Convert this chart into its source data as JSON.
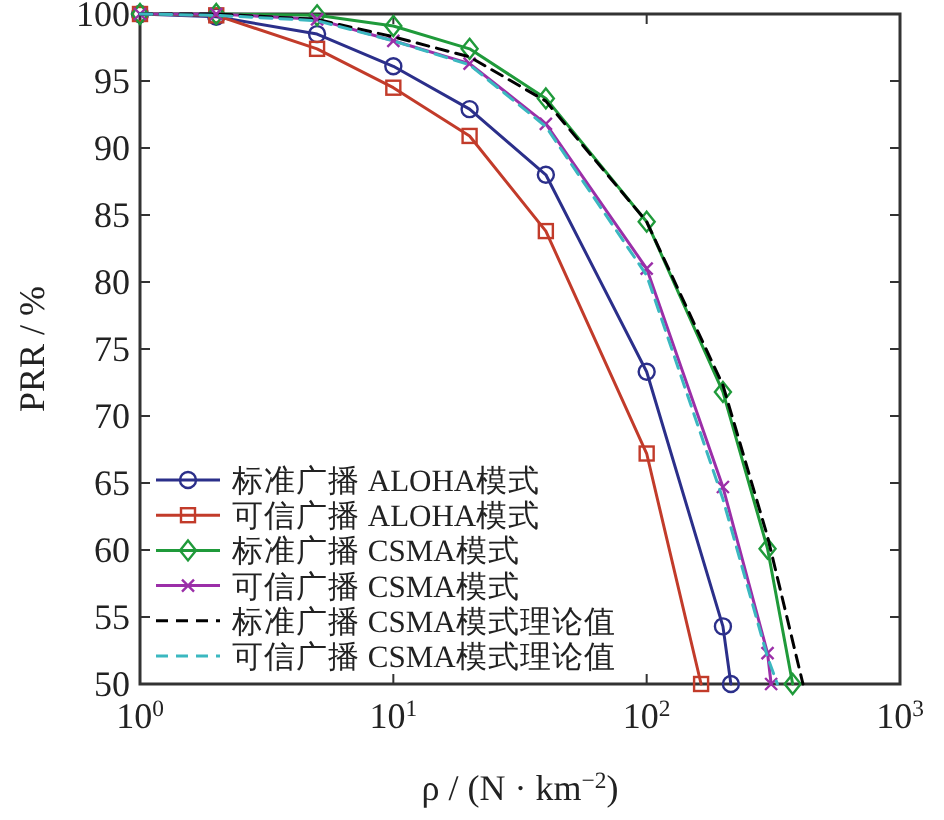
{
  "chart_data": {
    "type": "line",
    "xlabel": "ρ / (N · km$^{−2}$)",
    "ylabel": "PRR / %",
    "log": "x",
    "xlim": [
      1,
      1000
    ],
    "xticks": [
      {
        "value": 1,
        "label": "10$^{0}$"
      },
      {
        "value": 10,
        "label": "10$^{1}$"
      },
      {
        "value": 100,
        "label": "10$^{2}$"
      },
      {
        "value": 1000,
        "label": "10$^{3}$"
      }
    ],
    "ylim": [
      50,
      100
    ],
    "yticks": [
      50,
      55,
      60,
      65,
      70,
      75,
      80,
      85,
      90,
      95,
      100
    ],
    "grid": false,
    "legend": "bottom left",
    "series": [
      {
        "name": "标准广播 ALOHA模式",
        "color": "#2b2f8a",
        "marker": "circle",
        "line_style": "solid",
        "x": [
          1,
          2,
          5,
          10,
          20,
          40,
          100,
          200,
          215
        ],
        "values": [
          100,
          99.8,
          98.5,
          96.1,
          92.9,
          88.0,
          73.3,
          54.3,
          50
        ]
      },
      {
        "name": "可信广播 ALOHA模式",
        "color": "#c23b2a",
        "marker": "square",
        "line_style": "solid",
        "x": [
          1,
          2,
          5,
          10,
          20,
          40,
          100,
          164
        ],
        "values": [
          100,
          99.9,
          97.4,
          94.5,
          90.9,
          83.8,
          67.2,
          50
        ]
      },
      {
        "name": "标准广播 CSMA模式",
        "color": "#1f9a3a",
        "marker": "diamond",
        "line_style": "solid",
        "x": [
          1,
          2,
          5,
          10,
          20,
          40,
          100,
          200,
          300,
          377
        ],
        "values": [
          100,
          100,
          99.9,
          99.1,
          97.4,
          93.7,
          84.5,
          71.8,
          60.1,
          50
        ]
      },
      {
        "name": "可信广播 CSMA模式",
        "color": "#9b2fa8",
        "marker": "cross",
        "line_style": "solid",
        "x": [
          1,
          2,
          5,
          10,
          20,
          40,
          100,
          200,
          300,
          310
        ],
        "values": [
          100,
          100,
          99.6,
          98.0,
          96.3,
          91.8,
          81.0,
          64.7,
          52.3,
          50
        ]
      },
      {
        "name": "标准广播 CSMA模式理论值",
        "color": "#000000",
        "marker": "none",
        "line_style": "dashed",
        "x": [
          1,
          2,
          5,
          10,
          20,
          40,
          100,
          200,
          300,
          414
        ],
        "values": [
          100,
          100,
          99.6,
          98.3,
          96.8,
          93.5,
          84.5,
          72.3,
          61.0,
          50
        ]
      },
      {
        "name": "可信广播 CSMA模式理论值",
        "color": "#3bb8c0",
        "marker": "none",
        "line_style": "dashed",
        "x": [
          1,
          2,
          5,
          10,
          20,
          40,
          100,
          200,
          300,
          328
        ],
        "values": [
          100,
          99.9,
          99.5,
          98.0,
          96.2,
          91.6,
          80.5,
          63.8,
          52.0,
          50
        ]
      }
    ]
  }
}
